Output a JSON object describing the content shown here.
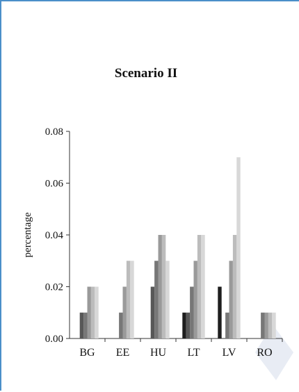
{
  "chart_data": {
    "type": "bar",
    "title": "Scenario II",
    "xlabel": "",
    "ylabel": "percentage",
    "categories": [
      "BG",
      "EE",
      "HU",
      "LT",
      "LV",
      "RO"
    ],
    "ylim": [
      0,
      0.08
    ],
    "yticks": [
      "0.00",
      "0.02",
      "0.04",
      "0.06",
      "0.08"
    ],
    "series": [
      {
        "color": "#1e1e1e",
        "values": [
          0,
          0,
          0,
          0.01,
          0.02,
          0
        ]
      },
      {
        "color": "#575757",
        "values": [
          0.01,
          0,
          0.02,
          0.01,
          0,
          0
        ]
      },
      {
        "color": "#777777",
        "values": [
          0.01,
          0.01,
          0.03,
          0.02,
          0.01,
          0.01
        ]
      },
      {
        "color": "#9a9a9a",
        "values": [
          0.02,
          0.02,
          0.04,
          0.03,
          0.03,
          0.01
        ]
      },
      {
        "color": "#bcbcbc",
        "values": [
          0.02,
          0.03,
          0.04,
          0.04,
          0.04,
          0.01
        ]
      },
      {
        "color": "#d8d8d8",
        "values": [
          0.02,
          0.03,
          0.03,
          0.04,
          0.07,
          0.01
        ]
      }
    ],
    "grid": false,
    "legend": "none"
  }
}
